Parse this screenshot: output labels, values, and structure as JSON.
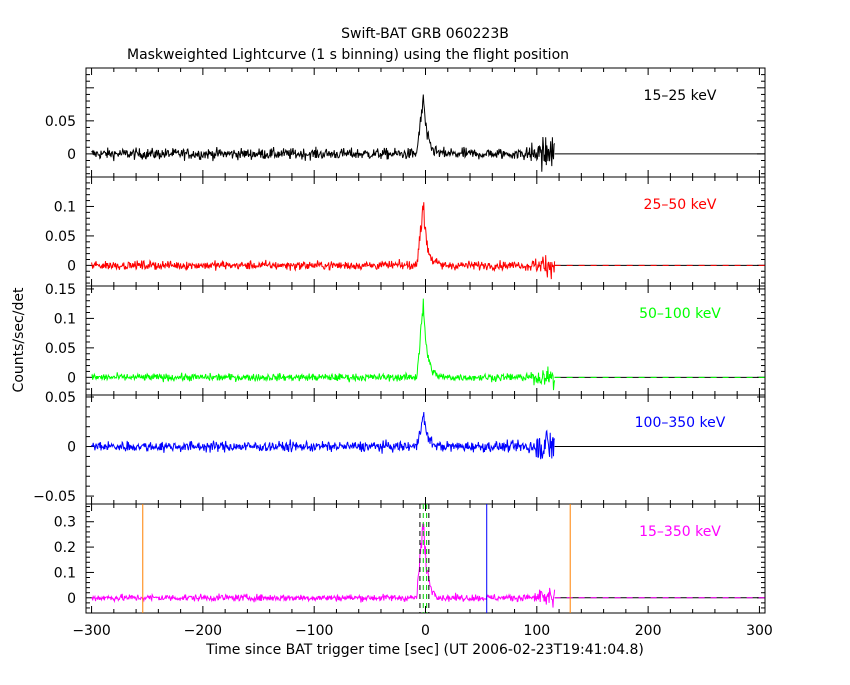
{
  "chart_data": {
    "type": "line",
    "title": "Swift-BAT GRB 060223B",
    "subtitle": "Maskweighted Lightcurve (1 s binning) using the flight position",
    "xlabel": "Time since BAT trigger time [sec] (UT 2006-02-23T19:41:04.8)",
    "ylabel": "Counts/sec/det",
    "xlim": [
      -305,
      305
    ],
    "x_ticks": [
      -300,
      -200,
      -100,
      0,
      100,
      200,
      300
    ],
    "x_tick_labels": [
      "−300",
      "−200",
      "−100",
      "0",
      "100",
      "200",
      "300"
    ],
    "data_range": [
      -300,
      116
    ],
    "burst": {
      "start": -8,
      "peak": -2,
      "end": 6
    },
    "panels": [
      {
        "name": "15–25 keV",
        "color": "#000000",
        "ylim": [
          -0.035,
          0.13
        ],
        "y_ticks": [
          0,
          0.05
        ],
        "y_tick_labels": [
          "0",
          "0.05"
        ],
        "noise": 0.008,
        "peak": 0.085,
        "tail_noise": 0.03,
        "zero_dashed": false,
        "markers": []
      },
      {
        "name": "25–50 keV",
        "color": "#ff0000",
        "ylim": [
          -0.035,
          0.15
        ],
        "y_ticks": [
          0,
          0.05,
          0.1
        ],
        "y_tick_labels": [
          "0",
          "0.05",
          "0.1"
        ],
        "noise": 0.007,
        "peak": 0.11,
        "tail_noise": 0.02,
        "zero_dashed": true,
        "markers": []
      },
      {
        "name": "50–100 keV",
        "color": "#00ff00",
        "ylim": [
          -0.03,
          0.155
        ],
        "y_ticks": [
          0,
          0.05,
          0.1,
          0.15
        ],
        "y_tick_labels": [
          "0",
          "0.05",
          "0.1",
          "0.15"
        ],
        "noise": 0.006,
        "peak": 0.13,
        "tail_noise": 0.018,
        "zero_dashed": true,
        "markers": []
      },
      {
        "name": "100–350 keV",
        "color": "#0000ff",
        "ylim": [
          -0.058,
          0.052
        ],
        "y_ticks": [
          -0.05,
          0,
          0.05
        ],
        "y_tick_labels": [
          "−0.05",
          "0",
          "0.05"
        ],
        "noise": 0.005,
        "peak": 0.035,
        "tail_noise": 0.02,
        "zero_dashed": false,
        "markers": []
      },
      {
        "name": "15–350 keV",
        "color": "#ff00ff",
        "ylim": [
          -0.06,
          0.37
        ],
        "y_ticks": [
          0,
          0.1,
          0.2,
          0.3
        ],
        "y_tick_labels": [
          "0",
          "0.1",
          "0.2",
          "0.3"
        ],
        "noise": 0.013,
        "peak": 0.32,
        "tail_noise": 0.045,
        "zero_dashed": true,
        "markers": [
          {
            "x": -254,
            "color": "#ff8000",
            "style": "solid"
          },
          {
            "x": 130,
            "color": "#ff8000",
            "style": "solid"
          },
          {
            "x": 55,
            "color": "#0000ff",
            "style": "solid"
          },
          {
            "x": -5,
            "color": "#000000",
            "style": "dashed"
          },
          {
            "x": 3,
            "color": "#000000",
            "style": "dashed"
          },
          {
            "x": -2,
            "color": "#00cc00",
            "style": "dashed"
          },
          {
            "x": 1,
            "color": "#00cc00",
            "style": "dashed"
          }
        ]
      }
    ]
  }
}
